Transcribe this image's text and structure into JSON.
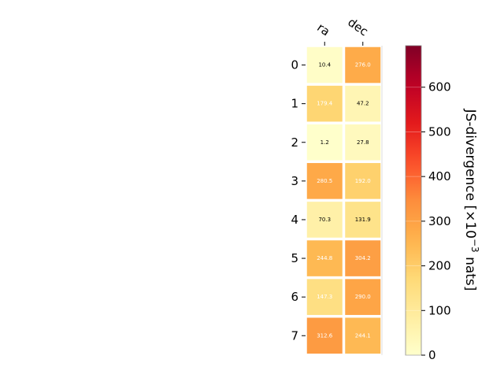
{
  "chart_data": {
    "type": "heatmap",
    "columns": [
      "ra",
      "dec"
    ],
    "rows": [
      "0",
      "1",
      "2",
      "3",
      "4",
      "5",
      "6",
      "7"
    ],
    "values": [
      [
        10.4,
        276.0
      ],
      [
        179.4,
        47.2
      ],
      [
        1.2,
        27.8
      ],
      [
        280.5,
        192.0
      ],
      [
        70.3,
        131.9
      ],
      [
        244.8,
        304.2
      ],
      [
        147.3,
        290.0
      ],
      [
        312.6,
        244.1
      ]
    ],
    "value_labels": [
      [
        "10.4",
        "276.0"
      ],
      [
        "179.4",
        "47.2"
      ],
      [
        "1.2",
        "27.8"
      ],
      [
        "280.5",
        "192.0"
      ],
      [
        "70.3",
        "131.9"
      ],
      [
        "244.8",
        "304.2"
      ],
      [
        "147.3",
        "290.0"
      ],
      [
        "312.6",
        "244.1"
      ]
    ],
    "colormap": "YlOrRd",
    "vmin": 0,
    "vmax": 693,
    "colorbar": {
      "label_main": "JS-divergence [×10",
      "label_exp": "−3",
      "label_tail": " nats]",
      "ticks": [
        0,
        100,
        200,
        300,
        400,
        500,
        600
      ],
      "tick_labels": [
        "0",
        "100",
        "200",
        "300",
        "400",
        "500",
        "600"
      ]
    },
    "text_color_light": "#ffffff",
    "text_color_dark": "#000000"
  }
}
